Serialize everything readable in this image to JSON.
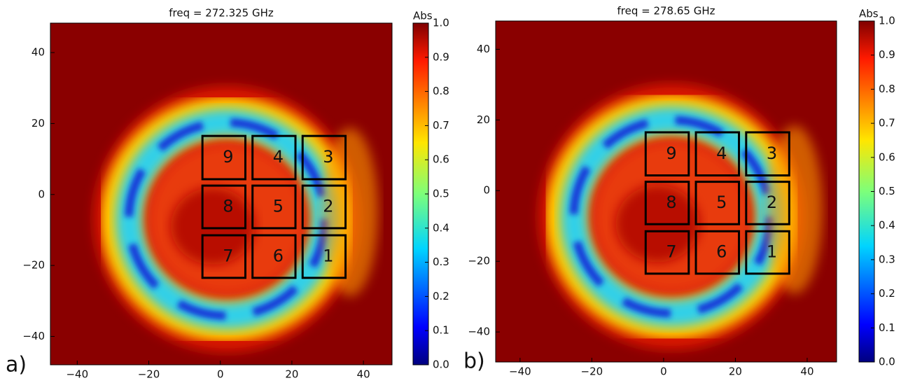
{
  "chart_data": [
    {
      "type": "heatmap",
      "title": "freq = 272.325 GHz",
      "panel_label": "a)",
      "xlim": [
        -47.5,
        48
      ],
      "ylim": [
        -48,
        48.3
      ],
      "xticks": [
        {
          "value": -40,
          "label": "−40"
        },
        {
          "value": -20,
          "label": "−20"
        },
        0,
        20,
        40
      ],
      "yticks": [
        {
          "value": -40,
          "label": "−40"
        },
        {
          "value": -20,
          "label": "−20"
        },
        0,
        20,
        40
      ],
      "colorbar": {
        "label": "Abs",
        "lim": [
          0,
          1
        ],
        "colormap": "jet",
        "ticks": [
          {
            "value": 0,
            "label": "0.0"
          },
          0.1,
          0.2,
          0.3,
          0.4,
          0.5,
          0.6,
          0.7,
          0.8,
          0.9,
          {
            "value": 1,
            "label": "1.0"
          }
        ]
      },
      "annotations": [
        "9",
        "4",
        "3",
        "8",
        "5",
        "2",
        "7",
        "6",
        "1"
      ]
    },
    {
      "type": "heatmap",
      "title": "freq = 278.65 GHz",
      "panel_label": "b)",
      "xlim": [
        -46.8,
        48.2
      ],
      "ylim": [
        -48.5,
        48
      ],
      "xticks": [
        {
          "value": -40,
          "label": "−40"
        },
        {
          "value": -20,
          "label": "−20"
        },
        0,
        20,
        40
      ],
      "yticks": [
        {
          "value": -40,
          "label": "−40"
        },
        {
          "value": -20,
          "label": "−20"
        },
        0,
        20,
        40
      ],
      "colorbar": {
        "label": "Abs",
        "lim": [
          0,
          1
        ],
        "colormap": "jet",
        "ticks": [
          {
            "value": 0,
            "label": "0.0"
          },
          0.1,
          0.2,
          0.3,
          0.4,
          0.5,
          0.6,
          0.7,
          0.8,
          0.9,
          {
            "value": 1,
            "label": "1.0"
          }
        ]
      },
      "annotations": [
        "9",
        "4",
        "3",
        "8",
        "5",
        "2",
        "7",
        "6",
        "1"
      ]
    }
  ]
}
